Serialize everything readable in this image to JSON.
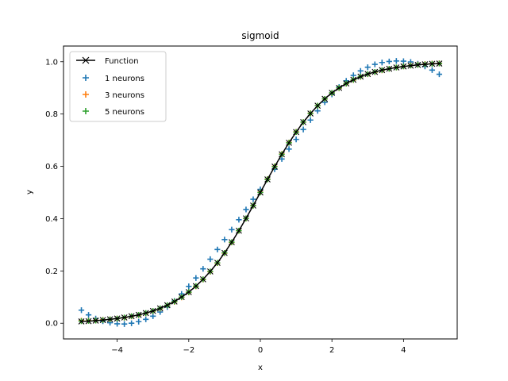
{
  "colors": {
    "function": "#000000",
    "n1": "#1f77b4",
    "n3": "#ff7f0e",
    "n5": "#2ca02c"
  },
  "chart_data": {
    "type": "line",
    "title": "sigmoid",
    "xlabel": "x",
    "ylabel": "y",
    "xlim": [
      -5.5,
      5.5
    ],
    "ylim": [
      -0.06,
      1.06
    ],
    "xticks": [
      -4,
      -2,
      0,
      2,
      4
    ],
    "xtick_labels": [
      "−4",
      "−2",
      "0",
      "2",
      "4"
    ],
    "yticks": [
      0.0,
      0.2,
      0.4,
      0.6,
      0.8,
      1.0
    ],
    "ytick_labels": [
      "0.0",
      "0.2",
      "0.4",
      "0.6",
      "0.8",
      "1.0"
    ],
    "grid": false,
    "legend_position": "top-left",
    "legend": {
      "function": "Function",
      "n1": "1 neurons",
      "n3": "3 neurons",
      "n5": "5 neurons"
    },
    "x": [
      -5.0,
      -4.8,
      -4.6,
      -4.4,
      -4.2,
      -4.0,
      -3.8,
      -3.6,
      -3.4,
      -3.2,
      -3.0,
      -2.8,
      -2.6,
      -2.4,
      -2.2,
      -2.0,
      -1.8,
      -1.6,
      -1.4,
      -1.2,
      -1.0,
      -0.8,
      -0.6,
      -0.4,
      -0.2,
      0.0,
      0.2,
      0.4,
      0.6,
      0.8,
      1.0,
      1.2,
      1.4,
      1.6,
      1.8,
      2.0,
      2.2,
      2.4,
      2.6,
      2.8,
      3.0,
      3.2,
      3.4,
      3.6,
      3.8,
      4.0,
      4.2,
      4.4,
      4.6,
      4.8,
      5.0
    ],
    "series": [
      {
        "key": "function",
        "name": "Function",
        "style": "line-x",
        "values": [
          0.007,
          0.008,
          0.01,
          0.012,
          0.015,
          0.018,
          0.022,
          0.027,
          0.032,
          0.039,
          0.047,
          0.057,
          0.069,
          0.083,
          0.1,
          0.119,
          0.142,
          0.168,
          0.198,
          0.231,
          0.269,
          0.31,
          0.354,
          0.401,
          0.45,
          0.5,
          0.55,
          0.599,
          0.646,
          0.69,
          0.731,
          0.769,
          0.802,
          0.832,
          0.858,
          0.881,
          0.9,
          0.917,
          0.931,
          0.943,
          0.953,
          0.961,
          0.968,
          0.973,
          0.978,
          0.982,
          0.985,
          0.988,
          0.99,
          0.992,
          0.993
        ]
      },
      {
        "key": "n1",
        "name": "1 neurons",
        "style": "plus",
        "values": [
          0.05,
          0.032,
          0.018,
          0.008,
          0.002,
          -0.002,
          -0.003,
          0.0,
          0.006,
          0.015,
          0.027,
          0.043,
          0.062,
          0.085,
          0.112,
          0.141,
          0.173,
          0.208,
          0.245,
          0.282,
          0.32,
          0.358,
          0.396,
          0.435,
          0.474,
          0.512,
          0.551,
          0.589,
          0.628,
          0.666,
          0.703,
          0.741,
          0.777,
          0.812,
          0.845,
          0.875,
          0.903,
          0.927,
          0.948,
          0.965,
          0.979,
          0.99,
          0.997,
          1.001,
          1.003,
          1.002,
          0.999,
          0.992,
          0.982,
          0.968,
          0.952
        ]
      },
      {
        "key": "n3",
        "name": "3 neurons",
        "style": "plus",
        "values": [
          0.01,
          0.01,
          0.011,
          0.013,
          0.015,
          0.018,
          0.021,
          0.026,
          0.031,
          0.038,
          0.046,
          0.056,
          0.068,
          0.082,
          0.099,
          0.118,
          0.141,
          0.167,
          0.197,
          0.23,
          0.268,
          0.309,
          0.354,
          0.401,
          0.45,
          0.501,
          0.551,
          0.6,
          0.647,
          0.691,
          0.732,
          0.769,
          0.803,
          0.832,
          0.858,
          0.88,
          0.899,
          0.916,
          0.93,
          0.942,
          0.952,
          0.96,
          0.967,
          0.973,
          0.978,
          0.982,
          0.986,
          0.989,
          0.991,
          0.993,
          0.994
        ]
      },
      {
        "key": "n5",
        "name": "5 neurons",
        "style": "plus",
        "values": [
          0.008,
          0.009,
          0.01,
          0.012,
          0.015,
          0.018,
          0.022,
          0.027,
          0.032,
          0.039,
          0.047,
          0.057,
          0.069,
          0.083,
          0.1,
          0.119,
          0.142,
          0.168,
          0.198,
          0.231,
          0.269,
          0.31,
          0.354,
          0.401,
          0.45,
          0.5,
          0.55,
          0.599,
          0.646,
          0.69,
          0.731,
          0.769,
          0.802,
          0.832,
          0.858,
          0.881,
          0.9,
          0.917,
          0.931,
          0.943,
          0.953,
          0.961,
          0.968,
          0.973,
          0.978,
          0.982,
          0.985,
          0.988,
          0.99,
          0.992,
          0.993
        ]
      }
    ]
  }
}
